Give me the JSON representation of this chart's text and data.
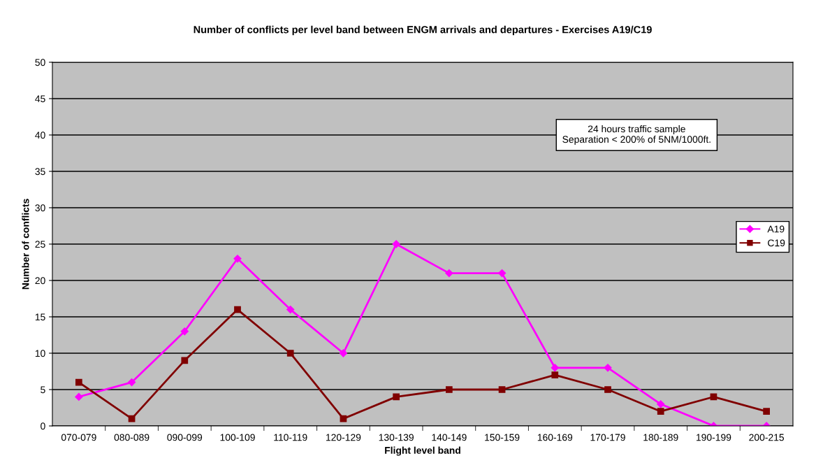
{
  "chart_data": {
    "type": "line",
    "title": "Number of conflicts per level band between ENGM arrivals and departures - Exercises A19/C19",
    "xlabel": "Flight level band",
    "ylabel": "Number of conflicts",
    "categories": [
      "070-079",
      "080-089",
      "090-099",
      "100-109",
      "110-119",
      "120-129",
      "130-139",
      "140-149",
      "150-159",
      "160-169",
      "170-179",
      "180-189",
      "190-199",
      "200-215"
    ],
    "series": [
      {
        "name": "A19",
        "color": "#ff00ff",
        "marker": "diamond",
        "values": [
          4,
          6,
          13,
          23,
          16,
          10,
          25,
          21,
          21,
          8,
          8,
          3,
          0,
          0
        ]
      },
      {
        "name": "C19",
        "color": "#800000",
        "marker": "square",
        "values": [
          6,
          1,
          9,
          16,
          10,
          1,
          4,
          5,
          5,
          7,
          5,
          2,
          4,
          2
        ]
      }
    ],
    "ylim": [
      0,
      50
    ],
    "yticks": [
      0,
      5,
      10,
      15,
      20,
      25,
      30,
      35,
      40,
      45,
      50
    ],
    "grid": "y",
    "legend": "right",
    "line_style": "solid",
    "annotations": [
      "24 hours traffic sample\nSeparation < 200% of 5NM/1000ft."
    ]
  }
}
